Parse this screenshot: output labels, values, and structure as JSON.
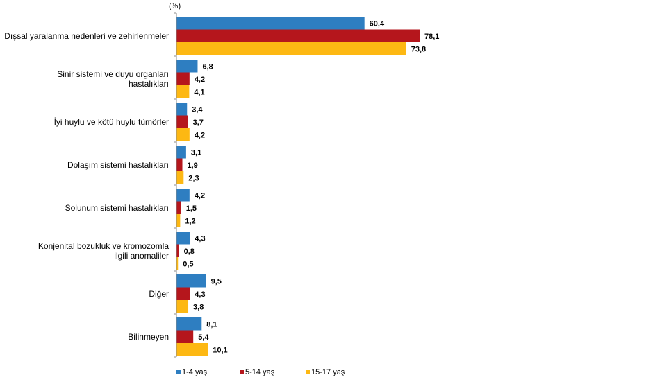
{
  "chart_data": {
    "type": "bar",
    "orientation": "horizontal",
    "unit": "(%)",
    "categories": [
      "Dışsal yaralanma nedenleri ve zehirlenmeler",
      "Sinir sistemi ve duyu organları hastalıkları",
      "İyi huylu ve kötü huylu tümörler",
      "Dolaşım sistemi hastalıkları",
      "Solunum sistemi hastalıkları",
      "Konjenital bozukluk ve kromozomla ilgili anomaliler",
      "Diğer",
      "Bilinmeyen"
    ],
    "category_lines": [
      [
        "Dışsal yaralanma nedenleri ve zehirlenmeler"
      ],
      [
        "Sinir sistemi ve duyu organları",
        "hastalıkları"
      ],
      [
        "İyi huylu ve kötü huylu tümörler"
      ],
      [
        "Dolaşım sistemi hastalıkları"
      ],
      [
        "Solunum sistemi hastalıkları"
      ],
      [
        "Konjenital bozukluk ve kromozomla",
        "ilgili anomaliler"
      ],
      [
        "Diğer"
      ],
      [
        "Bilinmeyen"
      ]
    ],
    "series": [
      {
        "name": "1-4 yaş",
        "color": "#2E7EC1",
        "values": [
          60.4,
          6.8,
          3.4,
          3.1,
          4.2,
          4.3,
          9.5,
          8.1
        ],
        "labels": [
          "60,4",
          "6,8",
          "3,4",
          "3,1",
          "4,2",
          "4,3",
          "9,5",
          "8,1"
        ]
      },
      {
        "name": "5-14 yaş",
        "color": "#B5161C",
        "values": [
          78.1,
          4.2,
          3.7,
          1.9,
          1.5,
          0.8,
          4.3,
          5.4
        ],
        "labels": [
          "78,1",
          "4,2",
          "3,7",
          "1,9",
          "1,5",
          "0,8",
          "4,3",
          "5,4"
        ]
      },
      {
        "name": "15-17 yaş",
        "color": "#FDB813",
        "values": [
          73.8,
          4.1,
          4.2,
          2.3,
          1.2,
          0.5,
          3.8,
          10.1
        ],
        "labels": [
          "73,8",
          "4,1",
          "4,2",
          "2,3",
          "1,2",
          "0,5",
          "3,8",
          "10,1"
        ]
      }
    ],
    "xlim": [
      0,
      80
    ],
    "grid": false,
    "legend_position": "bottom"
  }
}
